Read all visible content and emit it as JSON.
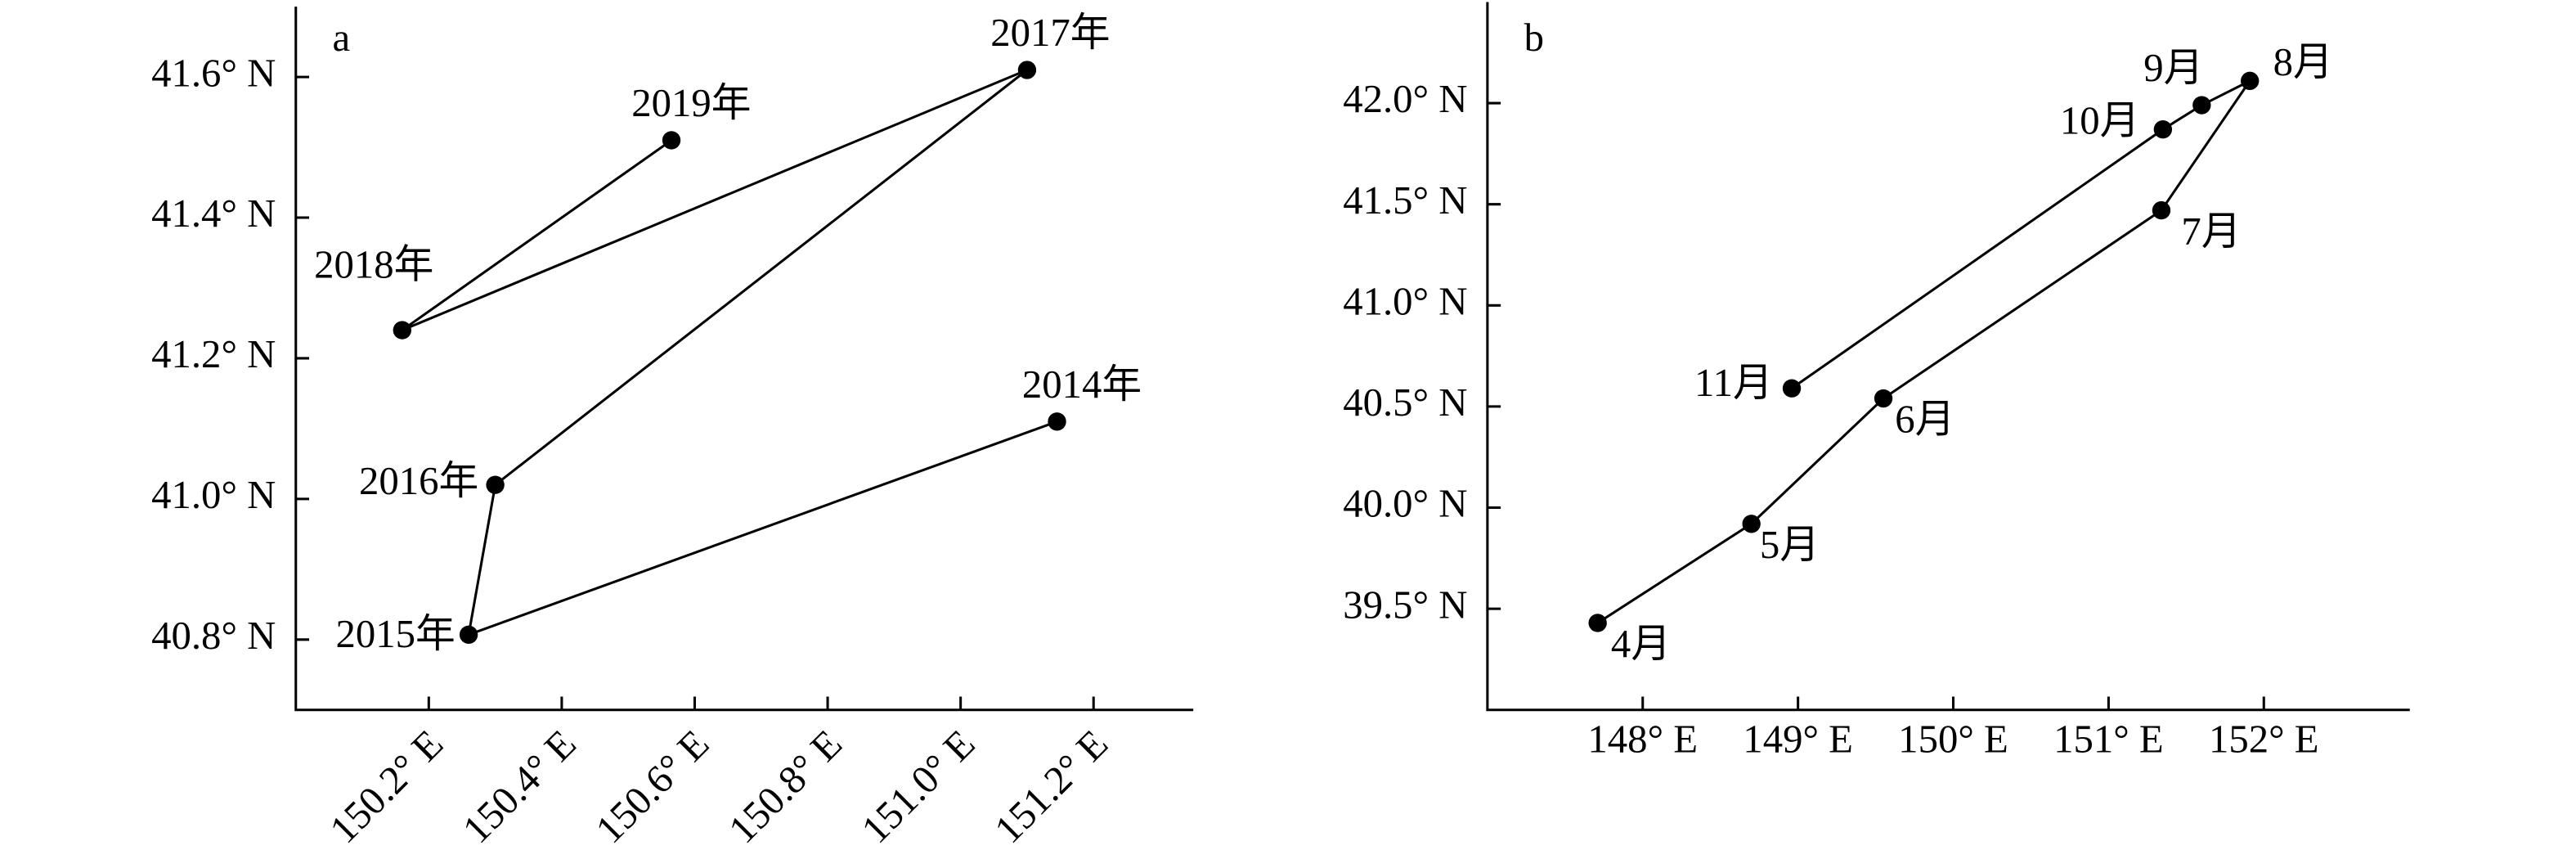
{
  "chart_data": [
    {
      "type": "line",
      "title": "a",
      "x": [
        151.145,
        150.26,
        150.3,
        151.1,
        150.16,
        150.565
      ],
      "series": [
        {
          "color": "#000000",
          "values": [
            41.11,
            40.807,
            41.02,
            41.61,
            41.24,
            41.51
          ]
        }
      ],
      "labels": [
        "2014年",
        "2015年",
        "2016年",
        "2017年",
        "2018年",
        "2019年"
      ],
      "xlim": [
        150.0,
        151.35
      ],
      "ylim": [
        40.7,
        41.7
      ],
      "xticks": [
        {
          "value": 150.2,
          "label": "150.2° E"
        },
        {
          "value": 150.4,
          "label": "150.4° E"
        },
        {
          "value": 150.6,
          "label": "150.6° E"
        },
        {
          "value": 150.8,
          "label": "150.8° E"
        },
        {
          "value": 151.0,
          "label": "151.0° E"
        },
        {
          "value": 151.2,
          "label": "151.2° E"
        }
      ],
      "yticks": [
        {
          "value": 40.8,
          "label": "40.8° N"
        },
        {
          "value": 41.0,
          "label": "41.0° N"
        },
        {
          "value": 41.2,
          "label": "41.2° N"
        },
        {
          "value": 41.4,
          "label": "41.4° N"
        },
        {
          "value": 41.6,
          "label": "41.6° N"
        }
      ]
    },
    {
      "type": "line",
      "title": "b",
      "x": [
        147.71,
        148.7,
        149.55,
        151.34,
        151.91,
        151.6,
        151.35,
        148.96
      ],
      "series": [
        {
          "color": "#000000",
          "values": [
            39.43,
            39.92,
            40.54,
            41.47,
            42.11,
            41.99,
            41.87,
            40.59
          ]
        }
      ],
      "labels": [
        "4月",
        "5月",
        "6月",
        "7月",
        "8月",
        "9月",
        "10月",
        "11月"
      ],
      "xlim": [
        147.0,
        152.94
      ],
      "ylim": [
        39.0,
        42.5
      ],
      "xticks": [
        {
          "value": 148,
          "label": "148° E"
        },
        {
          "value": 149,
          "label": "149° E"
        },
        {
          "value": 150,
          "label": "150° E"
        },
        {
          "value": 151,
          "label": "151° E"
        },
        {
          "value": 152,
          "label": "152° E"
        }
      ],
      "yticks": [
        {
          "value": 39.5,
          "label": "39.5° N"
        },
        {
          "value": 40.0,
          "label": "40.0° N"
        },
        {
          "value": 40.5,
          "label": "40.5° N"
        },
        {
          "value": 41.0,
          "label": "41.0° N"
        },
        {
          "value": 41.5,
          "label": "41.5° N"
        },
        {
          "value": 42.0,
          "label": "42.0° N"
        }
      ]
    }
  ]
}
